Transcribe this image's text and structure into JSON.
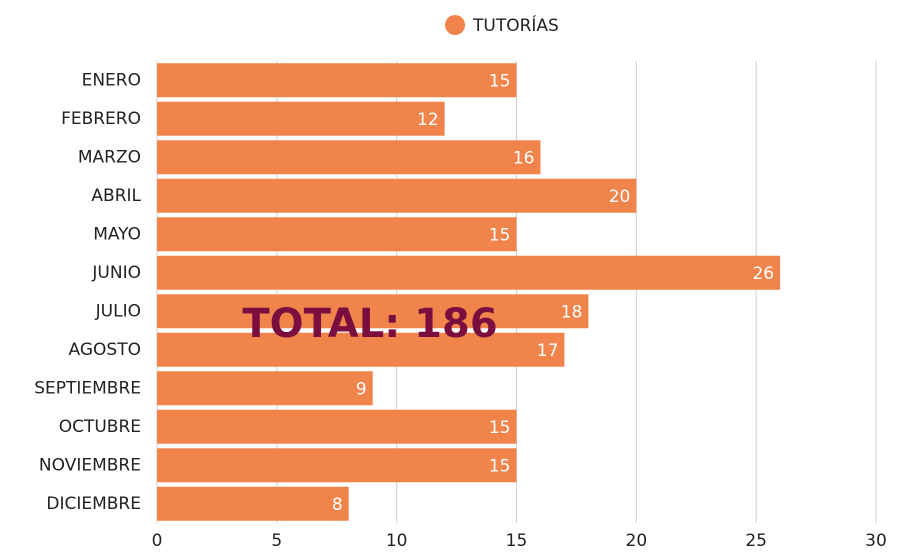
{
  "chart_data": {
    "type": "bar",
    "orientation": "horizontal",
    "categories": [
      "ENERO",
      "FEBRERO",
      "MARZO",
      "ABRIL",
      "MAYO",
      "JUNIO",
      "JULIO",
      "AGOSTO",
      "SEPTIEMBRE",
      "OCTUBRE",
      "NOVIEMBRE",
      "DICIEMBRE"
    ],
    "series": [
      {
        "name": "TUTORÍAS",
        "color": "#f0844a",
        "values": [
          15,
          12,
          16,
          20,
          15,
          26,
          18,
          17,
          9,
          15,
          15,
          8
        ]
      }
    ],
    "xlim": [
      0,
      30
    ],
    "xticks": [
      0,
      5,
      10,
      15,
      20,
      25,
      30
    ],
    "grid": true,
    "legend": "top",
    "annotations": [
      "TOTAL: 186"
    ]
  }
}
